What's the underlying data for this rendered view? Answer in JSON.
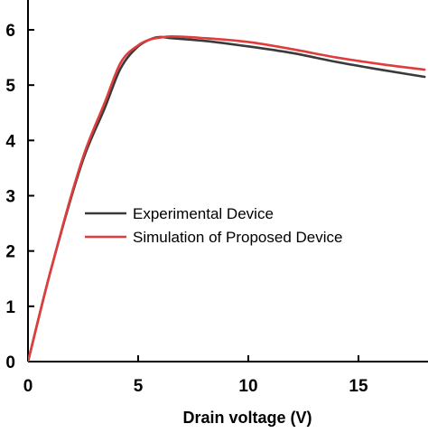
{
  "chart_data": {
    "type": "line",
    "title": "",
    "xlabel": "Drain voltage (V)",
    "ylabel": "",
    "xlim": [
      0,
      18
    ],
    "ylim": [
      0,
      6.3
    ],
    "x_ticks": [
      0,
      5,
      10,
      15
    ],
    "y_ticks": [
      0,
      1,
      2,
      3,
      4,
      5,
      6
    ],
    "x_tick_labels": [
      "0",
      "5",
      "10",
      "15"
    ],
    "y_tick_labels": [
      "0",
      "1",
      "2",
      "3",
      "4",
      "5",
      "6"
    ],
    "grid": false,
    "legend_position": "center-left",
    "series": [
      {
        "name": "Experimental Device",
        "color": "#3a3a3a",
        "x": [
          0,
          1,
          2.5,
          3.5,
          4.2,
          5.0,
          5.5,
          6.0,
          6.5,
          8,
          10,
          12,
          14,
          16,
          18
        ],
        "y": [
          0,
          1.6,
          3.65,
          4.6,
          5.3,
          5.7,
          5.82,
          5.87,
          5.85,
          5.8,
          5.7,
          5.58,
          5.42,
          5.28,
          5.15
        ]
      },
      {
        "name": "Simulation of Proposed Device",
        "color": "#e03c3c",
        "x": [
          0,
          1,
          2.5,
          3.5,
          4.2,
          5.0,
          5.5,
          6.0,
          6.5,
          8,
          10,
          12,
          14,
          16,
          18
        ],
        "y": [
          0,
          1.6,
          3.7,
          4.7,
          5.4,
          5.72,
          5.82,
          5.86,
          5.88,
          5.85,
          5.78,
          5.65,
          5.5,
          5.38,
          5.28
        ]
      }
    ]
  }
}
